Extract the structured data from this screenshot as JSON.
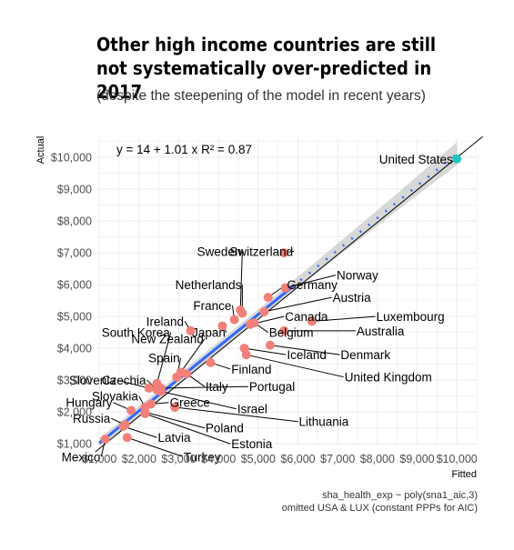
{
  "title": "Other high income countries are still not systematically over-predicted in 2017",
  "subtitle": "(despite the steepening of the model in recent years)",
  "caption_line1": "sha_health_exp ~ poly(sna1_aic,3)",
  "caption_line2": "omitted USA & LUX (constant PPPs for AIC)",
  "chart_data": {
    "type": "scatter",
    "xlabel": "Fitted",
    "ylabel": "Actual",
    "xlim": [
      950,
      10500
    ],
    "ylim": [
      950,
      10600
    ],
    "x_ticks": [
      1000,
      2000,
      3000,
      4000,
      5000,
      6000,
      7000,
      8000,
      9000,
      10000
    ],
    "y_ticks": [
      1000,
      2000,
      3000,
      4000,
      5000,
      6000,
      7000,
      8000,
      9000,
      10000
    ],
    "x_tick_labels": [
      "$1,000",
      "$2,000",
      "$3,000",
      "$4,000",
      "$5,000",
      "$6,000",
      "$7,000",
      "$8,000",
      "$9,000",
      "$10,000"
    ],
    "y_tick_labels": [
      "$1,000",
      "$2,000",
      "$3,000",
      "$4,000",
      "$5,000",
      "$6,000",
      "$7,000",
      "$8,000",
      "$9,000",
      "$10,000"
    ],
    "grid": true,
    "equation_label": "y = 14 + 1.01 x    R² = 0.87",
    "fit": {
      "intercept": 14,
      "slope": 1.01,
      "r2": 0.87
    },
    "colors": {
      "point": "#F08078",
      "highlight": "#20C5C5",
      "fit_line": "#3366FF",
      "band": "#BEBEBE",
      "identity_line": "#000000",
      "diagonal_dots": "#3366FF"
    },
    "points": [
      {
        "name": "United States",
        "x": 10000,
        "y": 9950,
        "highlight": true,
        "label_dx": -4,
        "label_dy": -1
      },
      {
        "name": "Switzerland",
        "x": 5650,
        "y": 7000,
        "label_dx": -1,
        "label_dy": 3
      },
      {
        "name": "Norway",
        "x": 5680,
        "y": 5900,
        "label_dx": 2,
        "label_dy": 5
      },
      {
        "name": "Sweden",
        "x": 4550,
        "y": 5200,
        "label_dx": -1,
        "label_dy": 3
      },
      {
        "name": "Germany",
        "x": 5250,
        "y": 5600,
        "label_dx": 0,
        "label_dy": 1
      },
      {
        "name": "Netherlands",
        "x": 4600,
        "y": 5100,
        "label_dx": -2,
        "label_dy": 4
      },
      {
        "name": "Austria",
        "x": 5150,
        "y": 5150,
        "label_dx": 1,
        "label_dy": 2
      },
      {
        "name": "Luxembourg",
        "x": 6350,
        "y": 4850,
        "label_dx": 1,
        "label_dy": 1
      },
      {
        "name": "France",
        "x": 4400,
        "y": 4900,
        "label_dx": -1,
        "label_dy": 2
      },
      {
        "name": "Canada",
        "x": 4800,
        "y": 4750,
        "label_dx": 1,
        "label_dy": 1
      },
      {
        "name": "Australia",
        "x": 5650,
        "y": 4550,
        "label_dx": 1,
        "label_dy": -1
      },
      {
        "name": "Ireland",
        "x": 3300,
        "y": 4550,
        "label_dx": -1,
        "label_dy": 1
      },
      {
        "name": "Japan",
        "x": 4100,
        "y": 4700,
        "label_dx": -1,
        "label_dy": -1
      },
      {
        "name": "Belgium",
        "x": 4900,
        "y": 4800,
        "label_dx": 1,
        "label_dy": -3
      },
      {
        "name": "Denmark",
        "x": 5300,
        "y": 4100,
        "label_dx": 1,
        "label_dy": -1
      },
      {
        "name": "Iceland",
        "x": 4650,
        "y": 4000,
        "label_dx": 1,
        "label_dy": -1
      },
      {
        "name": "United Kingdom",
        "x": 4700,
        "y": 3800,
        "label_dx": 1,
        "label_dy": -2
      },
      {
        "name": "New Zealand",
        "x": 3050,
        "y": 3250,
        "label_dx": -1,
        "label_dy": 3
      },
      {
        "name": "Finland",
        "x": 3800,
        "y": 3550,
        "label_dx": 1,
        "label_dy": -1
      },
      {
        "name": "South Korea",
        "x": 2450,
        "y": 2900,
        "label_dx": -1,
        "label_dy": 5
      },
      {
        "name": "Spain",
        "x": 2950,
        "y": 3100,
        "label_dx": -1,
        "label_dy": 3
      },
      {
        "name": "Italy",
        "x": 3200,
        "y": 3200,
        "label_dx": 1,
        "label_dy": -3
      },
      {
        "name": "Portugal",
        "x": 2550,
        "y": 2750,
        "label_dx": 1,
        "label_dy": -1
      },
      {
        "name": "Czechia",
        "x": 2450,
        "y": 2700,
        "label_dx": -1,
        "label_dy": 1
      },
      {
        "name": "Slovenia",
        "x": 2250,
        "y": 2750,
        "label_dx": -1,
        "label_dy": 2
      },
      {
        "name": "Israel",
        "x": 2550,
        "y": 2650,
        "label_dx": 1,
        "label_dy": -2
      },
      {
        "name": "Slovakia",
        "x": 2150,
        "y": 2150,
        "label_dx": -1,
        "label_dy": 1
      },
      {
        "name": "Greece",
        "x": 2300,
        "y": 2250,
        "label_dx": 1,
        "label_dy": 1
      },
      {
        "name": "Hungary",
        "x": 1800,
        "y": 2050,
        "label_dx": -1,
        "label_dy": 1
      },
      {
        "name": "Lithuania",
        "x": 2900,
        "y": 2150,
        "label_dx": 1,
        "label_dy": -1
      },
      {
        "name": "Russia",
        "x": 1650,
        "y": 1600,
        "label_dx": -1,
        "label_dy": 1
      },
      {
        "name": "Poland",
        "x": 2150,
        "y": 2000,
        "label_dx": 1,
        "label_dy": -2
      },
      {
        "name": "Latvia",
        "x": 1600,
        "y": 1550,
        "label_dx": 1,
        "label_dy": 1
      },
      {
        "name": "Estonia",
        "x": 2150,
        "y": 1950,
        "label_dx": 1,
        "label_dy": -3
      },
      {
        "name": "Turkey",
        "x": 1700,
        "y": 1200,
        "label_dx": 1,
        "label_dy": -2
      },
      {
        "name": "Mexico",
        "x": 1150,
        "y": 1150,
        "label_dx": -1,
        "label_dy": -2
      }
    ],
    "label_positions": {
      "United States": [
        9900,
        9950
      ],
      "Switzerland": [
        5900,
        7050
      ],
      "Norway": [
        6950,
        6300
      ],
      "Sweden": [
        4600,
        7050
      ],
      "Germany": [
        5700,
        6000
      ],
      "Netherlands": [
        4600,
        6000
      ],
      "Austria": [
        6850,
        5600
      ],
      "Luxembourg": [
        7950,
        5000
      ],
      "France": [
        4350,
        5350
      ],
      "Canada": [
        5650,
        5000
      ],
      "Australia": [
        7450,
        4550
      ],
      "Ireland": [
        3150,
        4850
      ],
      "Japan": [
        4200,
        4500
      ],
      "Belgium": [
        5250,
        4500
      ],
      "Denmark": [
        7050,
        3800
      ],
      "Iceland": [
        5700,
        3800
      ],
      "United Kingdom": [
        7150,
        3100
      ],
      "New Zealand": [
        3650,
        4300
      ],
      "Finland": [
        4300,
        3350
      ],
      "South Korea": [
        2800,
        4500
      ],
      "Spain": [
        3050,
        3700
      ],
      "Italy": [
        3650,
        2800
      ],
      "Portugal": [
        4750,
        2800
      ],
      "Czechia": [
        2200,
        3000
      ],
      "Slovenia": [
        1450,
        3000
      ],
      "Israel": [
        4450,
        2100
      ],
      "Slovakia": [
        2000,
        2500
      ],
      "Greece": [
        2750,
        2300
      ],
      "Hungary": [
        1350,
        2300
      ],
      "Lithuania": [
        6000,
        1700
      ],
      "Russia": [
        1300,
        1800
      ],
      "Poland": [
        3650,
        1500
      ],
      "Latvia": [
        2450,
        1200
      ],
      "Estonia": [
        4300,
        1000
      ],
      "Turkey": [
        3100,
        600
      ],
      "Mexico": [
        1050,
        600
      ]
    }
  }
}
